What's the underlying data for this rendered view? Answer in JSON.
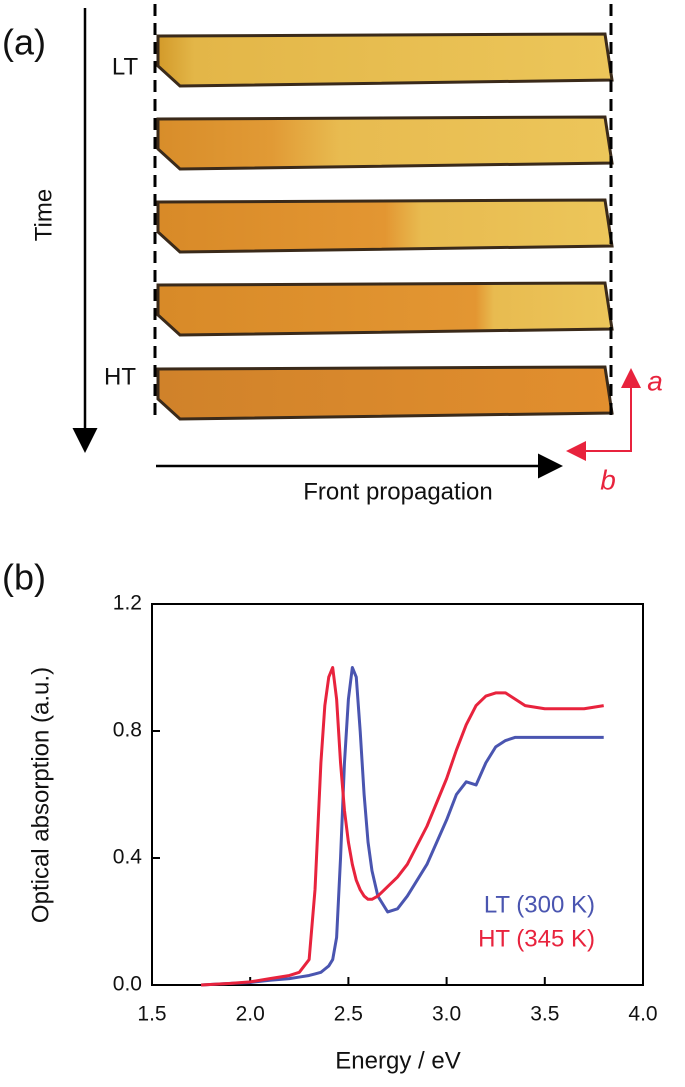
{
  "panel_a": {
    "label": "(a)",
    "top_state": "LT",
    "bottom_state": "HT",
    "time_label": "Time",
    "front_label": "Front propagation",
    "axis_a": "a",
    "axis_b": "b"
  },
  "chart_data": {
    "type": "line",
    "label": "(b)",
    "x_label": "Energy / eV",
    "y_label": "Optical absorption (a.u.)",
    "x": [
      1.75,
      1.9,
      2.0,
      2.1,
      2.2,
      2.25,
      2.3,
      2.33,
      2.36,
      2.38,
      2.4,
      2.42,
      2.44,
      2.46,
      2.48,
      2.5,
      2.52,
      2.54,
      2.56,
      2.58,
      2.6,
      2.62,
      2.65,
      2.7,
      2.75,
      2.8,
      2.9,
      3.0,
      3.05,
      3.1,
      3.15,
      3.2,
      3.25,
      3.3,
      3.35,
      3.4,
      3.5,
      3.6,
      3.7,
      3.8
    ],
    "series": [
      {
        "name": "LT (300 K)",
        "color": "#4a55b0",
        "values": [
          0,
          0.005,
          0.008,
          0.015,
          0.02,
          0.025,
          0.03,
          0.035,
          0.04,
          0.05,
          0.06,
          0.08,
          0.15,
          0.4,
          0.7,
          0.9,
          1.0,
          0.97,
          0.8,
          0.6,
          0.45,
          0.36,
          0.28,
          0.23,
          0.24,
          0.28,
          0.38,
          0.52,
          0.6,
          0.64,
          0.63,
          0.7,
          0.75,
          0.77,
          0.78,
          0.78,
          0.78,
          0.78,
          0.78,
          0.78
        ]
      },
      {
        "name": "HT (345 K)",
        "color": "#e8233d",
        "values": [
          0,
          0.005,
          0.01,
          0.02,
          0.03,
          0.04,
          0.08,
          0.3,
          0.7,
          0.88,
          0.97,
          1.0,
          0.9,
          0.7,
          0.55,
          0.45,
          0.38,
          0.33,
          0.3,
          0.28,
          0.27,
          0.27,
          0.28,
          0.31,
          0.34,
          0.38,
          0.5,
          0.65,
          0.74,
          0.82,
          0.88,
          0.91,
          0.92,
          0.92,
          0.9,
          0.88,
          0.87,
          0.87,
          0.87,
          0.88
        ]
      }
    ],
    "xlim": [
      1.5,
      4.0
    ],
    "xticks": [
      1.5,
      {
        "value": 2.0,
        "label": "2.0"
      },
      2.5,
      {
        "value": 3.0,
        "label": "3.0"
      },
      3.5,
      {
        "value": 4.0,
        "label": "4.0"
      }
    ],
    "ylim": [
      0,
      1.2
    ],
    "yticks": [
      {
        "value": 0,
        "label": "0.0"
      },
      0.4,
      0.8,
      1.2
    ],
    "legend": "lower right",
    "grid": false
  }
}
